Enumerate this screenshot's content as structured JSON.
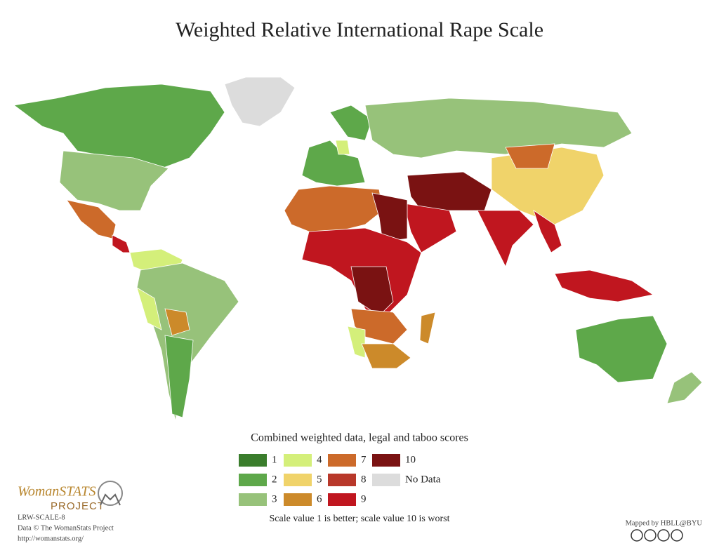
{
  "title": "Weighted Relative International Rape Scale",
  "legend": {
    "title": "Combined weighted data, legal and taboo scores",
    "items": [
      {
        "label": "1",
        "color": "#3a7d2c"
      },
      {
        "label": "2",
        "color": "#5ea84a"
      },
      {
        "label": "3",
        "color": "#97c27a"
      },
      {
        "label": "4",
        "color": "#d4ef7a"
      },
      {
        "label": "5",
        "color": "#f0d36a"
      },
      {
        "label": "6",
        "color": "#cc8a2a"
      },
      {
        "label": "7",
        "color": "#cc6a2a"
      },
      {
        "label": "8",
        "color": "#b8382a"
      },
      {
        "label": "9",
        "color": "#c0161f"
      },
      {
        "label": "10",
        "color": "#7a1212"
      },
      {
        "label": "No Data",
        "color": "#dcdcdc"
      }
    ],
    "note": "Scale value 1 is better; scale value 10 is worst"
  },
  "logo": {
    "name": "WomanSTATS",
    "sub": "PROJECT"
  },
  "footer": {
    "lines": [
      "LRW-SCALE-8",
      "Data © The WomanStats Project",
      "http://womanstats.org/"
    ],
    "credit": "Mapped by HBLL@BYU"
  }
}
